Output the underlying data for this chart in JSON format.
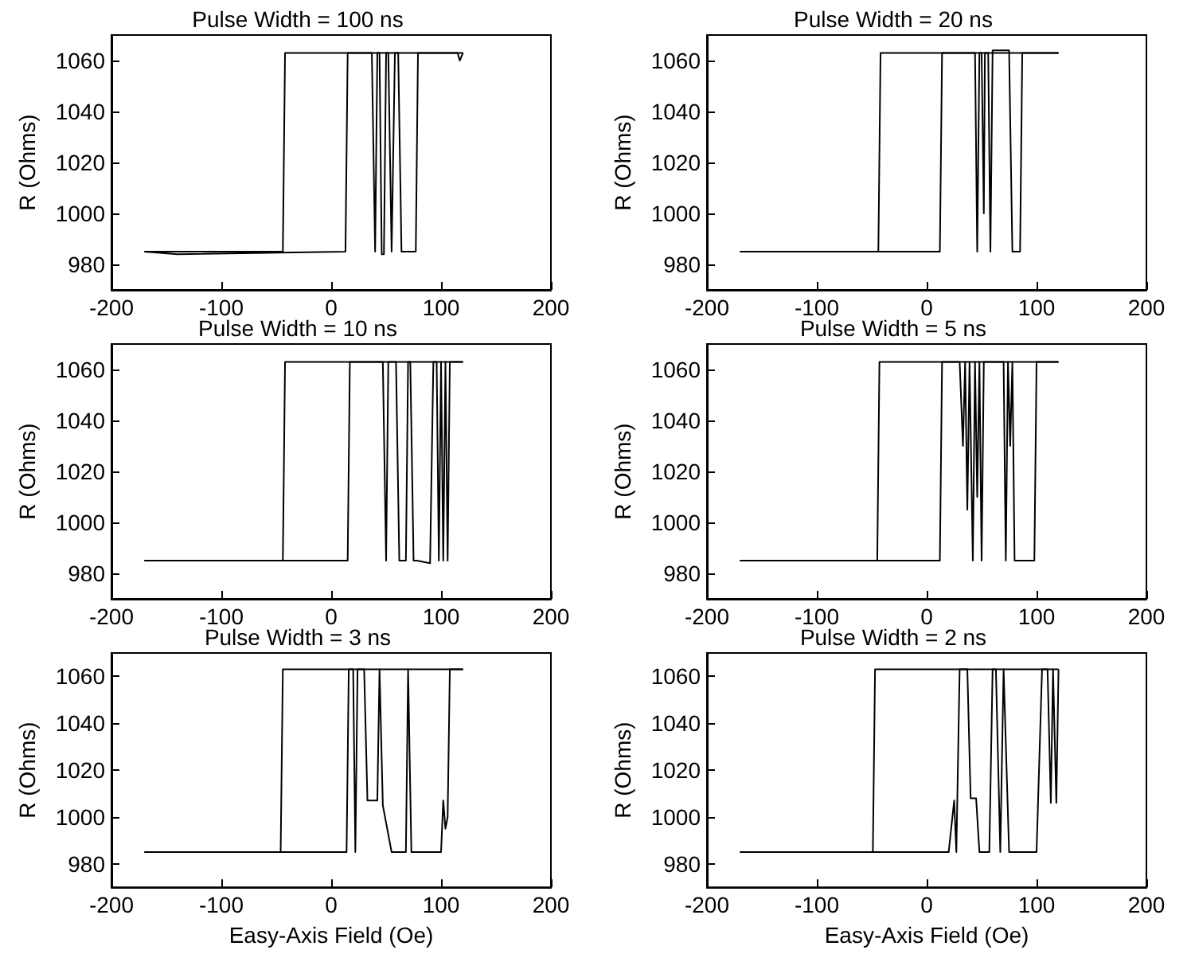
{
  "chart_data": [
    {
      "type": "line",
      "title": "Pulse Width = 100 ns",
      "ylabel": "R (Ohms)",
      "xlim": [
        -200,
        200
      ],
      "xticks": [
        -200,
        -100,
        0,
        100,
        200
      ],
      "ylim": [
        970,
        1070
      ],
      "yticks": [
        980,
        1000,
        1020,
        1040,
        1060
      ],
      "grid": false,
      "series": [
        {
          "color": "#000000",
          "x": [
            -170,
            -140,
            13,
            15,
            37,
            40,
            42,
            44,
            46,
            48,
            50,
            52,
            55,
            58,
            61,
            64,
            77,
            79,
            115,
            117,
            120
          ],
          "values": [
            985,
            984,
            985,
            1063,
            1063,
            985,
            1063,
            1063,
            984,
            984,
            1063,
            1063,
            985,
            1063,
            1063,
            985,
            985,
            1063,
            1063,
            1060,
            1063
          ]
        },
        {
          "color": "#000000",
          "x": [
            -170,
            -44,
            -42,
            120
          ],
          "values": [
            985,
            985,
            1063,
            1063
          ]
        }
      ]
    },
    {
      "type": "line",
      "title": "Pulse Width = 20 ns",
      "ylabel": "R (Ohms)",
      "xlim": [
        -200,
        200
      ],
      "xticks": [
        -200,
        -100,
        0,
        100,
        200
      ],
      "ylim": [
        970,
        1070
      ],
      "yticks": [
        980,
        1000,
        1020,
        1040,
        1060
      ],
      "grid": false,
      "series": [
        {
          "color": "#000000",
          "x": [
            -170,
            12,
            14,
            44,
            46,
            48,
            50,
            52,
            53,
            56,
            58,
            60,
            75,
            78,
            85,
            87,
            120
          ],
          "values": [
            985,
            985,
            1063,
            1063,
            985,
            1063,
            1063,
            1000,
            1063,
            1063,
            985,
            1064,
            1064,
            985,
            985,
            1063,
            1063
          ]
        },
        {
          "color": "#000000",
          "x": [
            -170,
            -44,
            -42,
            120
          ],
          "values": [
            985,
            985,
            1063,
            1063
          ]
        }
      ]
    },
    {
      "type": "line",
      "title": "Pulse Width = 10 ns",
      "ylabel": "R (Ohms)",
      "xlim": [
        -200,
        200
      ],
      "xticks": [
        -200,
        -100,
        0,
        100,
        200
      ],
      "ylim": [
        970,
        1070
      ],
      "yticks": [
        980,
        1000,
        1020,
        1040,
        1060
      ],
      "grid": false,
      "series": [
        {
          "color": "#000000",
          "x": [
            -170,
            15,
            17,
            47,
            50,
            52,
            59,
            62,
            68,
            70,
            72,
            75,
            78,
            90,
            93,
            96,
            98,
            100,
            102,
            104,
            106,
            108,
            110,
            120
          ],
          "values": [
            985,
            985,
            1063,
            1063,
            985,
            1063,
            1063,
            985,
            985,
            1063,
            1063,
            985,
            985,
            984,
            1063,
            1063,
            985,
            1063,
            985,
            1063,
            985,
            1063,
            1063,
            1063
          ]
        },
        {
          "color": "#000000",
          "x": [
            -170,
            -44,
            -42,
            120
          ],
          "values": [
            985,
            985,
            1063,
            1063
          ]
        }
      ]
    },
    {
      "type": "line",
      "title": "Pulse Width = 5 ns",
      "ylabel": "R (Ohms)",
      "xlim": [
        -200,
        200
      ],
      "xticks": [
        -200,
        -100,
        0,
        100,
        200
      ],
      "ylim": [
        970,
        1070
      ],
      "yticks": [
        980,
        1000,
        1020,
        1040,
        1060
      ],
      "grid": false,
      "series": [
        {
          "color": "#000000",
          "x": [
            -170,
            12,
            14,
            30,
            33,
            35,
            37,
            39,
            42,
            44,
            46,
            48,
            50,
            52,
            54,
            70,
            72,
            74,
            76,
            78,
            80,
            98,
            100,
            120
          ],
          "values": [
            985,
            985,
            1063,
            1063,
            1030,
            1063,
            1005,
            1063,
            985,
            1063,
            1010,
            1063,
            985,
            1063,
            1063,
            1063,
            985,
            1063,
            1030,
            1063,
            985,
            985,
            1063,
            1063
          ]
        },
        {
          "color": "#000000",
          "x": [
            -170,
            -45,
            -43,
            120
          ],
          "values": [
            985,
            985,
            1063,
            1063
          ]
        }
      ]
    },
    {
      "type": "line",
      "title": "Pulse Width = 3 ns",
      "ylabel": "R (Ohms)",
      "xlabel": "Easy-Axis Field (Oe)",
      "xlim": [
        -200,
        200
      ],
      "xticks": [
        -200,
        -100,
        0,
        100,
        200
      ],
      "ylim": [
        970,
        1070
      ],
      "yticks": [
        980,
        1000,
        1020,
        1040,
        1060
      ],
      "grid": false,
      "series": [
        {
          "color": "#000000",
          "x": [
            -170,
            14,
            16,
            20,
            22,
            24,
            30,
            33,
            36,
            42,
            44,
            47,
            55,
            68,
            70,
            73,
            100,
            102,
            104,
            106,
            108,
            120
          ],
          "values": [
            985,
            985,
            1063,
            1063,
            985,
            1063,
            1063,
            1007,
            1007,
            1007,
            1063,
            1005,
            985,
            985,
            1063,
            985,
            985,
            1007,
            995,
            1000,
            1063,
            1063
          ]
        },
        {
          "color": "#000000",
          "x": [
            -170,
            -46,
            -44,
            120
          ],
          "values": [
            985,
            985,
            1063,
            1063
          ]
        }
      ]
    },
    {
      "type": "line",
      "title": "Pulse Width = 2 ns",
      "ylabel": "R (Ohms)",
      "xlabel": "Easy-Axis Field (Oe)",
      "xlim": [
        -200,
        200
      ],
      "xticks": [
        -200,
        -100,
        0,
        100,
        200
      ],
      "ylim": [
        970,
        1070
      ],
      "yticks": [
        980,
        1000,
        1020,
        1040,
        1060
      ],
      "grid": false,
      "series": [
        {
          "color": "#000000",
          "x": [
            -170,
            20,
            25,
            27,
            30,
            37,
            40,
            45,
            48,
            57,
            60,
            63,
            67,
            70,
            75,
            100,
            105,
            110,
            113,
            115,
            118,
            120
          ],
          "values": [
            985,
            985,
            1007,
            985,
            1063,
            1063,
            1008,
            1008,
            985,
            985,
            1063,
            1063,
            985,
            1063,
            985,
            985,
            1063,
            1063,
            1006,
            1063,
            1006,
            1063
          ]
        },
        {
          "color": "#000000",
          "x": [
            -170,
            -49,
            -47,
            120
          ],
          "values": [
            985,
            985,
            1063,
            1063
          ]
        }
      ]
    }
  ]
}
